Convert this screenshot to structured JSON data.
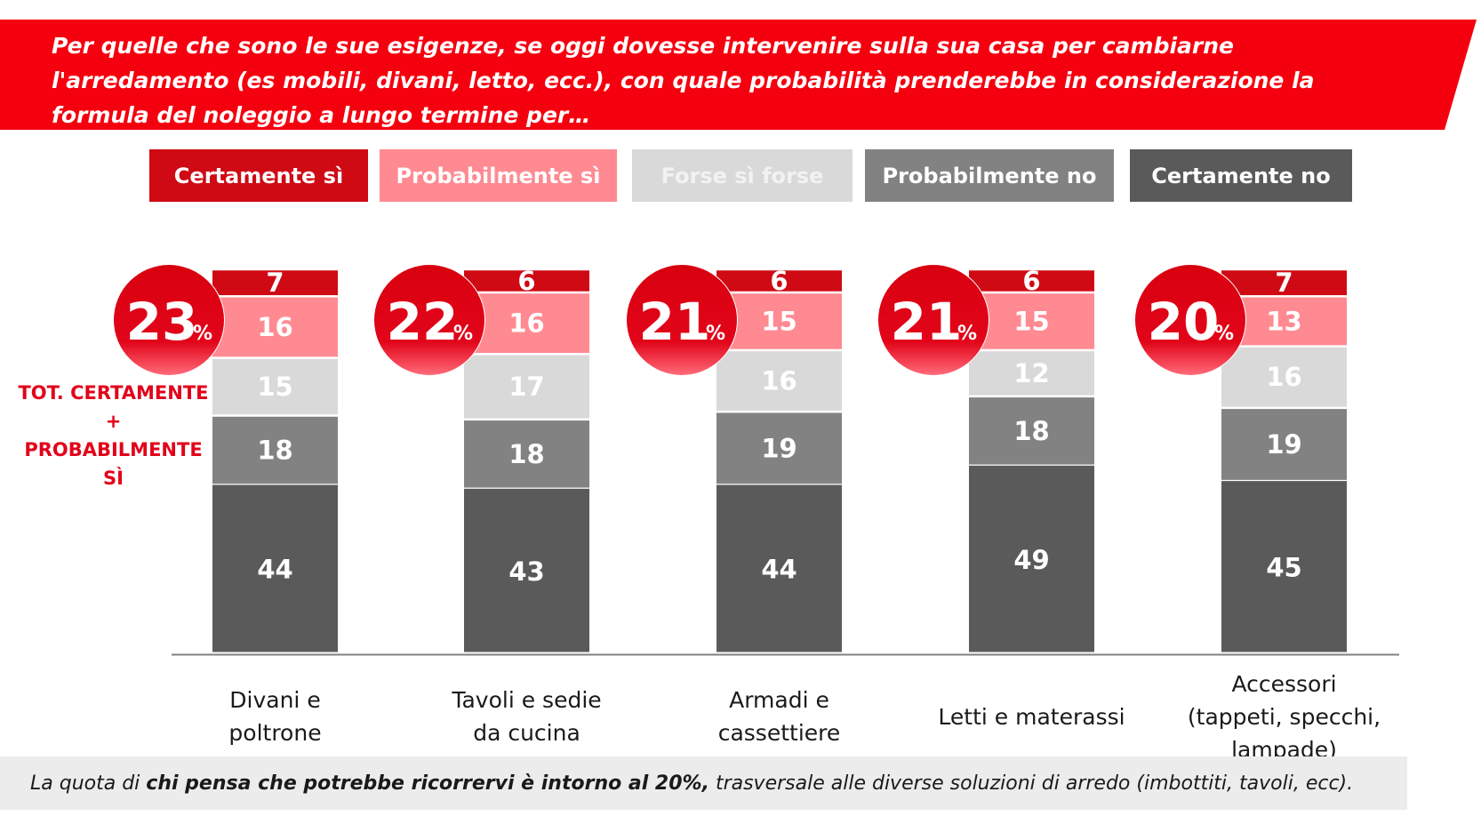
{
  "question": "Per quelle che sono le sue esigenze, se oggi dovesse intervenire sulla sua casa per cambiarne l'arredamento (es mobili, divani, letto, ecc.), con quale probabilità prenderebbe in considerazione la formula del noleggio a lungo termine per…",
  "colors": {
    "banner": "#f5000e",
    "certamente_si": "#cf0a14",
    "probabilmente_si": "#ff8a92",
    "forse": "#d9d9d9",
    "probabilmente_no": "#828282",
    "certamente_no": "#5a5a5a"
  },
  "tot_label": "TOT. CERTAMENTE + PROBABILMENTE SÌ",
  "footer": {
    "prefix": "La quota di ",
    "bold": "chi pensa che potrebbe ricorrervi è intorno al 20%,",
    "suffix": " trasversale alle diverse soluzioni di arredo (imbottiti, tavoli, ecc)."
  },
  "chart_data": {
    "type": "bar",
    "stacked": true,
    "categories": [
      "Divani e poltrone",
      "Tavoli e sedie da cucina",
      "Armadi e cassettiere",
      "Letti e materassi",
      "Accessori (tappeti, specchi, lampade)"
    ],
    "category_lines": [
      [
        "Divani e",
        "poltrone"
      ],
      [
        "Tavoli e sedie",
        "da cucina"
      ],
      [
        "Armadi e",
        "cassettiere"
      ],
      [
        "Letti e materassi"
      ],
      [
        "Accessori",
        "(tappeti, specchi,",
        "lampade)"
      ]
    ],
    "series": [
      {
        "name": "Certamente sì",
        "values": [
          7,
          6,
          6,
          6,
          7
        ]
      },
      {
        "name": "Probabilmente sì",
        "values": [
          16,
          16,
          15,
          15,
          13
        ]
      },
      {
        "name": "Forse sì forse",
        "values": [
          15,
          17,
          16,
          12,
          16
        ]
      },
      {
        "name": "Probabilmente no",
        "values": [
          18,
          18,
          19,
          18,
          19
        ]
      },
      {
        "name": "Certamente no",
        "values": [
          44,
          43,
          44,
          49,
          45
        ]
      }
    ],
    "totals": {
      "label": "TOT. CERTAMENTE + PROBABILMENTE SÌ",
      "values": [
        23,
        22,
        21,
        21,
        20
      ],
      "unit": "%"
    },
    "legend_position": "top",
    "grid": false
  }
}
